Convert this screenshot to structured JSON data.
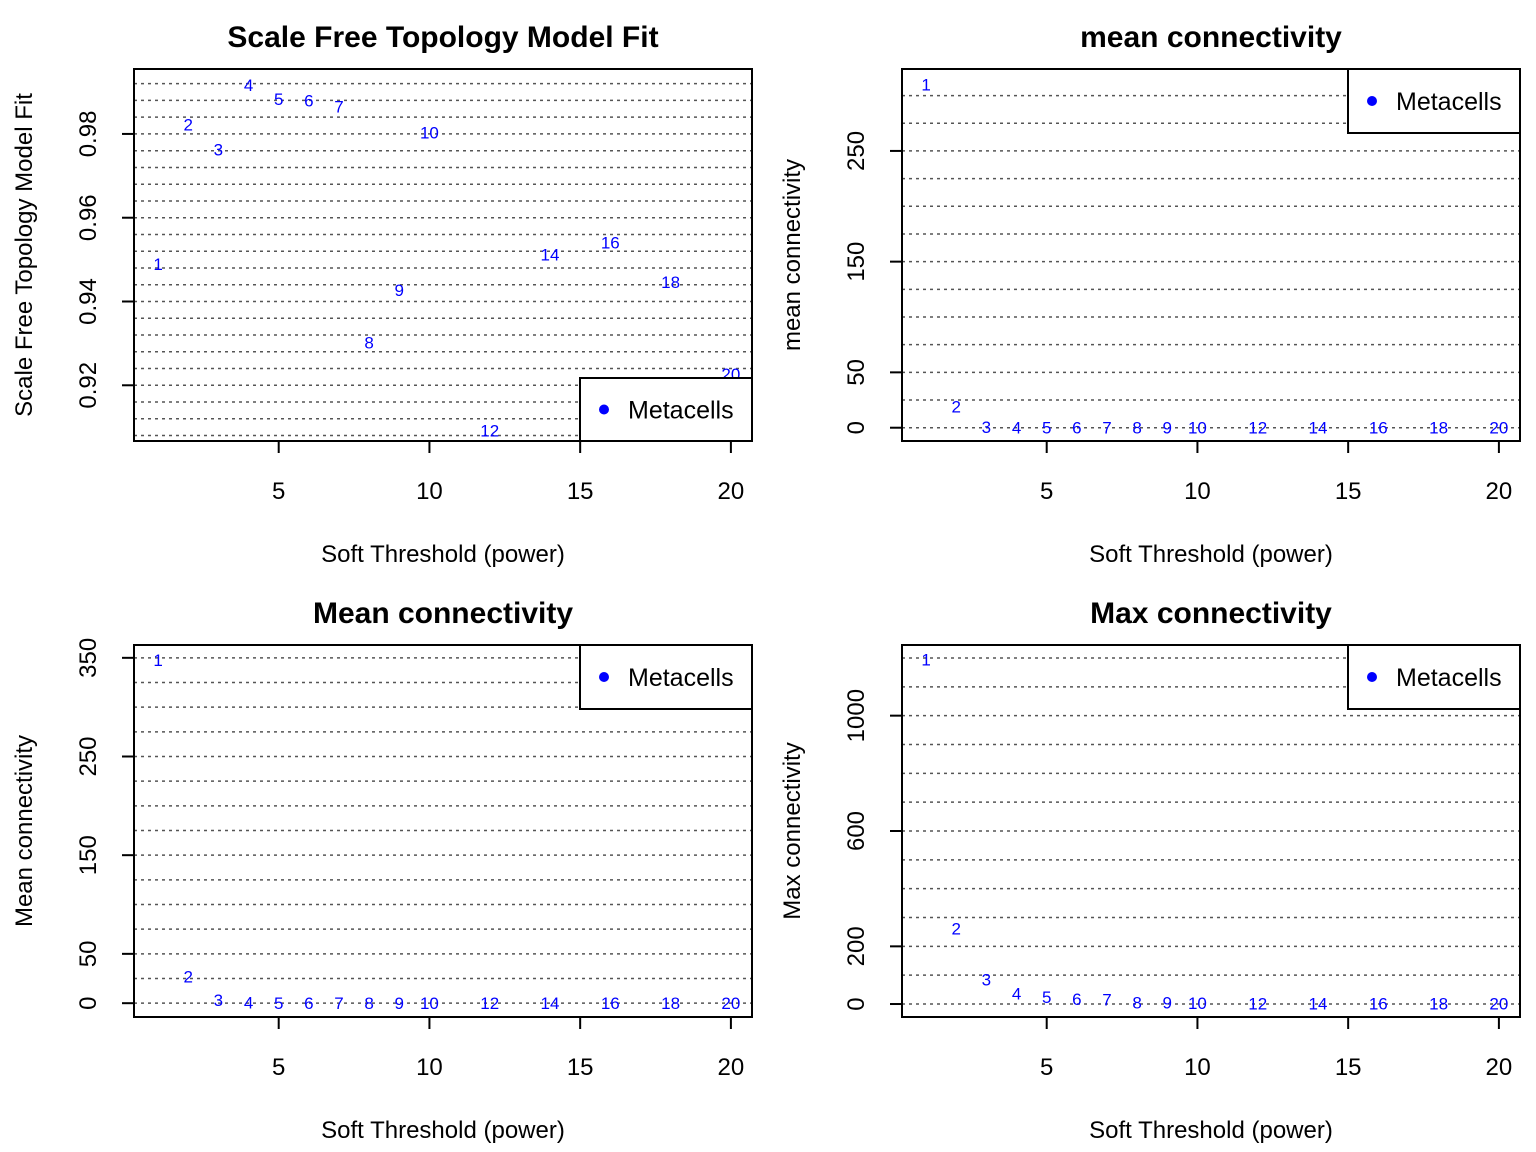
{
  "chart_data": [
    {
      "type": "scatter",
      "title": "Scale Free Topology Model Fit",
      "xlabel": "Soft Threshold (power)",
      "ylabel": "Scale Free Topology Model Fit",
      "xlim": [
        0.2,
        20.7
      ],
      "ylim": [
        0.9067,
        0.9955
      ],
      "x_ticks": [
        "5",
        "10",
        "15",
        "20"
      ],
      "y_ticks": [
        "0.92",
        "0.94",
        "0.96",
        "0.98"
      ],
      "hlines": [
        0.908,
        0.912,
        0.916,
        0.92,
        0.924,
        0.928,
        0.932,
        0.936,
        0.94,
        0.944,
        0.948,
        0.952,
        0.956,
        0.96,
        0.964,
        0.968,
        0.972,
        0.976,
        0.98,
        0.984,
        0.988,
        0.992
      ],
      "legend": {
        "position": "bottom-right",
        "entries": [
          "Metacells"
        ]
      },
      "series": [
        {
          "name": "Metacells",
          "points": [
            {
              "x": 1,
              "y": 0.949
            },
            {
              "x": 2,
              "y": 0.9822
            },
            {
              "x": 3,
              "y": 0.9763
            },
            {
              "x": 4,
              "y": 0.9917
            },
            {
              "x": 5,
              "y": 0.9883
            },
            {
              "x": 6,
              "y": 0.988
            },
            {
              "x": 7,
              "y": 0.9865
            },
            {
              "x": 8,
              "y": 0.9302
            },
            {
              "x": 9,
              "y": 0.9428
            },
            {
              "x": 10,
              "y": 0.9804
            },
            {
              "x": 12,
              "y": 0.9092
            },
            {
              "x": 14,
              "y": 0.9512
            },
            {
              "x": 16,
              "y": 0.9541
            },
            {
              "x": 18,
              "y": 0.9446
            },
            {
              "x": 20,
              "y": 0.9227
            }
          ]
        }
      ]
    },
    {
      "type": "scatter",
      "title": "mean connectivity",
      "xlabel": "Soft Threshold (power)",
      "ylabel": "mean connectivity",
      "xlim": [
        0.2,
        20.7
      ],
      "ylim": [
        -12,
        324
      ],
      "x_ticks": [
        "5",
        "10",
        "15",
        "20"
      ],
      "y_ticks": [
        "0",
        "50",
        "150",
        "250"
      ],
      "hlines": [
        0,
        25,
        50,
        75,
        100,
        125,
        150,
        175,
        200,
        225,
        250,
        275,
        300
      ],
      "legend": {
        "position": "top-right",
        "entries": [
          "Metacells"
        ]
      },
      "series": [
        {
          "name": "Metacells",
          "points": [
            {
              "x": 1,
              "y": 310
            },
            {
              "x": 2,
              "y": 19
            },
            {
              "x": 3,
              "y": 0.8
            },
            {
              "x": 4,
              "y": 0.3
            },
            {
              "x": 5,
              "y": 0.2
            },
            {
              "x": 6,
              "y": 0.1
            },
            {
              "x": 7,
              "y": 0.1
            },
            {
              "x": 8,
              "y": 0
            },
            {
              "x": 9,
              "y": 0
            },
            {
              "x": 10,
              "y": 0
            },
            {
              "x": 12,
              "y": 0
            },
            {
              "x": 14,
              "y": 0
            },
            {
              "x": 16,
              "y": 0
            },
            {
              "x": 18,
              "y": 0
            },
            {
              "x": 20,
              "y": 0
            }
          ]
        }
      ]
    },
    {
      "type": "scatter",
      "title": "Mean connectivity",
      "xlabel": "Soft Threshold (power)",
      "ylabel": "Mean connectivity",
      "xlim": [
        0.2,
        20.7
      ],
      "ylim": [
        -14,
        363
      ],
      "x_ticks": [
        "5",
        "10",
        "15",
        "20"
      ],
      "y_ticks": [
        "0",
        "50",
        "150",
        "250",
        "350"
      ],
      "hlines": [
        0,
        25,
        50,
        75,
        100,
        125,
        150,
        175,
        200,
        225,
        250,
        275,
        300,
        325,
        350
      ],
      "legend": {
        "position": "top-right",
        "entries": [
          "Metacells"
        ]
      },
      "series": [
        {
          "name": "Metacells",
          "points": [
            {
              "x": 1,
              "y": 348
            },
            {
              "x": 2,
              "y": 27
            },
            {
              "x": 3,
              "y": 3
            },
            {
              "x": 4,
              "y": 0.5
            },
            {
              "x": 5,
              "y": 0.2
            },
            {
              "x": 6,
              "y": 0.1
            },
            {
              "x": 7,
              "y": 0.1
            },
            {
              "x": 8,
              "y": 0
            },
            {
              "x": 9,
              "y": 0
            },
            {
              "x": 10,
              "y": 0
            },
            {
              "x": 12,
              "y": 0
            },
            {
              "x": 14,
              "y": 0
            },
            {
              "x": 16,
              "y": 0
            },
            {
              "x": 18,
              "y": 0
            },
            {
              "x": 20,
              "y": 0
            }
          ]
        }
      ]
    },
    {
      "type": "scatter",
      "title": "Max connectivity",
      "xlabel": "Soft Threshold (power)",
      "ylabel": "Max connectivity",
      "xlim": [
        0.2,
        20.7
      ],
      "ylim": [
        -45,
        1245
      ],
      "x_ticks": [
        "5",
        "10",
        "15",
        "20"
      ],
      "y_ticks": [
        "0",
        "200",
        "600",
        "1000"
      ],
      "hlines": [
        0,
        100,
        200,
        300,
        400,
        500,
        600,
        700,
        800,
        900,
        1000,
        1100,
        1200
      ],
      "legend": {
        "position": "top-right",
        "entries": [
          "Metacells"
        ]
      },
      "series": [
        {
          "name": "Metacells",
          "points": [
            {
              "x": 1,
              "y": 1195
            },
            {
              "x": 2,
              "y": 262
            },
            {
              "x": 3,
              "y": 85
            },
            {
              "x": 4,
              "y": 36
            },
            {
              "x": 5,
              "y": 25
            },
            {
              "x": 6,
              "y": 18
            },
            {
              "x": 7,
              "y": 15
            },
            {
              "x": 8,
              "y": 5
            },
            {
              "x": 9,
              "y": 5
            },
            {
              "x": 10,
              "y": 3
            },
            {
              "x": 12,
              "y": 2
            },
            {
              "x": 14,
              "y": 1
            },
            {
              "x": 16,
              "y": 1
            },
            {
              "x": 18,
              "y": 1
            },
            {
              "x": 20,
              "y": 1
            }
          ]
        }
      ]
    }
  ],
  "colors": {
    "points": "#0000ff",
    "axis": "#000000",
    "gridline": "#555555"
  }
}
